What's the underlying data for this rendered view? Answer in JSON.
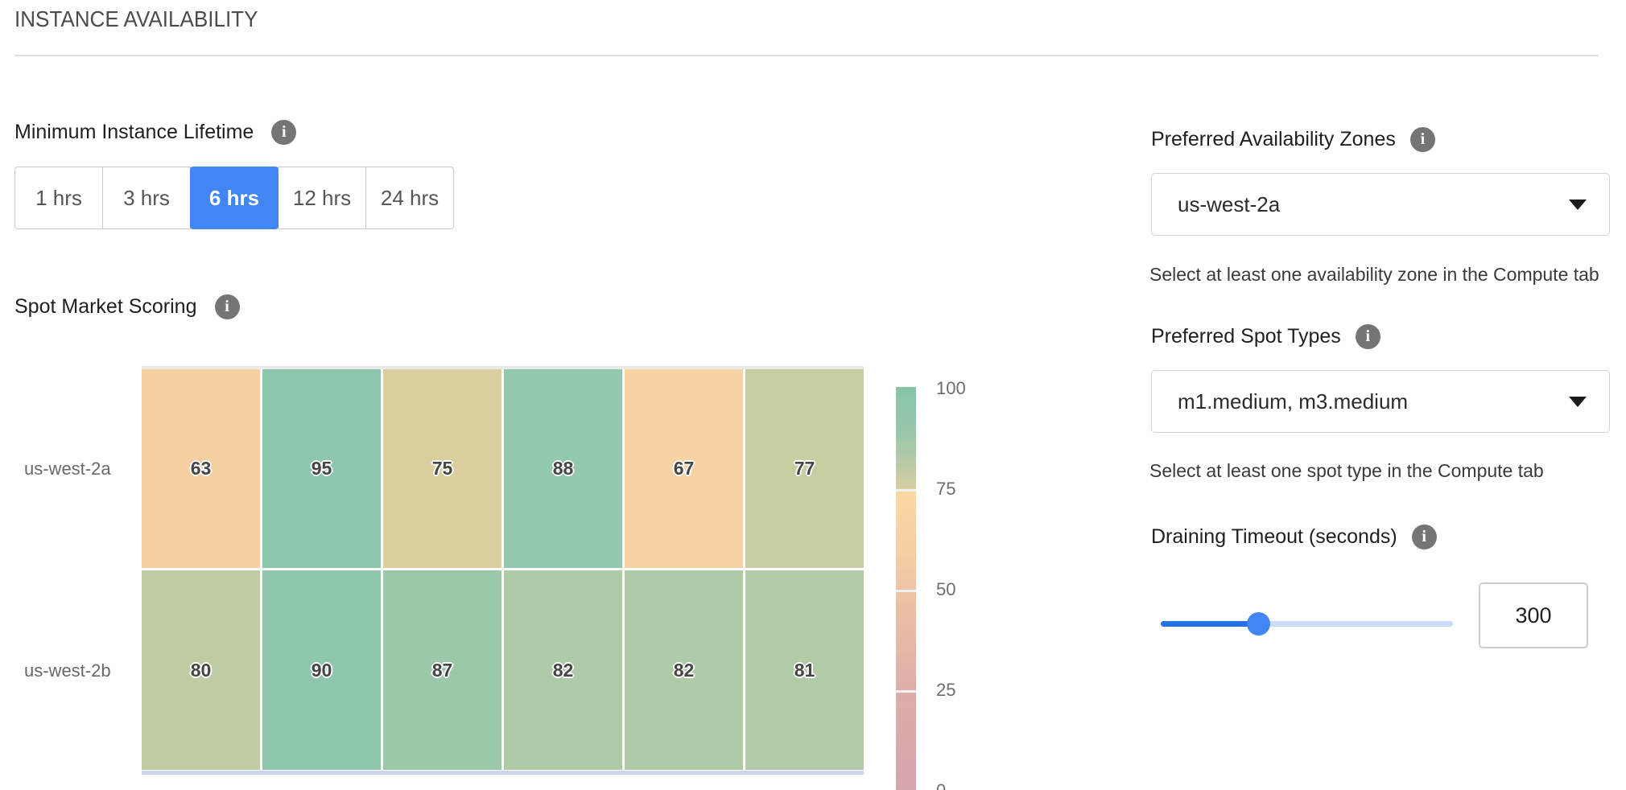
{
  "page": {
    "title": "INSTANCE AVAILABILITY"
  },
  "icons": {
    "info": "i"
  },
  "colors": {
    "accent_blue": "#4285F4",
    "slider_fill": "#2470e5",
    "slider_track": "#cadcf9",
    "info_gray": "#757575"
  },
  "minimum_instance_lifetime": {
    "label": "Minimum Instance Lifetime",
    "options": [
      "1 hrs",
      "3 hrs",
      "6 hrs",
      "12 hrs",
      "24 hrs"
    ],
    "selected": "6 hrs"
  },
  "spot_market_scoring": {
    "label": "Spot Market Scoring"
  },
  "chart_data": {
    "type": "heatmap",
    "title": "Spot Market Scoring",
    "rows": [
      "us-west-2a",
      "us-west-2b"
    ],
    "values": [
      [
        63,
        95,
        75,
        88,
        67,
        77
      ],
      [
        80,
        90,
        87,
        82,
        82,
        81
      ]
    ],
    "cell_colors": [
      [
        "#F6D0A0",
        "#8BC6AD",
        "#DACE9F",
        "#92C8AB",
        "#F7D3A3",
        "#C9CDA3"
      ],
      [
        "#BECBA3",
        "#8EC7AC",
        "#9AC8A9",
        "#AECAA6",
        "#AECAA6",
        "#B2CAA5"
      ]
    ],
    "colorbar": {
      "range": [
        0,
        100
      ],
      "tick_labels": [
        "100",
        "75",
        "50",
        "25",
        "0"
      ],
      "gradient": [
        {
          "pos": 0.0,
          "color": "#87C4A8"
        },
        {
          "pos": 0.12,
          "color": "#9BC7AA"
        },
        {
          "pos": 0.18,
          "color": "#B4C9A5"
        },
        {
          "pos": 0.25,
          "color": "#D5CDA0"
        },
        {
          "pos": 0.26,
          "color": "#FAD8A3"
        },
        {
          "pos": 0.4,
          "color": "#F6CFA3"
        },
        {
          "pos": 0.5,
          "color": "#EFC4A4"
        },
        {
          "pos": 0.64,
          "color": "#E7B7A6"
        },
        {
          "pos": 0.75,
          "color": "#DFADA8"
        },
        {
          "pos": 0.9,
          "color": "#DAA8AB"
        },
        {
          "pos": 1.0,
          "color": "#D7A5AC"
        }
      ]
    }
  },
  "preferred_availability_zones": {
    "label": "Preferred Availability Zones",
    "value": "us-west-2a",
    "helper": "Select at least one availability zone in the Compute tab"
  },
  "preferred_spot_types": {
    "label": "Preferred Spot Types",
    "value": "m1.medium, m3.medium",
    "helper": "Select at least one spot type in the Compute tab"
  },
  "draining_timeout": {
    "label": "Draining Timeout (seconds)",
    "value": "300"
  }
}
